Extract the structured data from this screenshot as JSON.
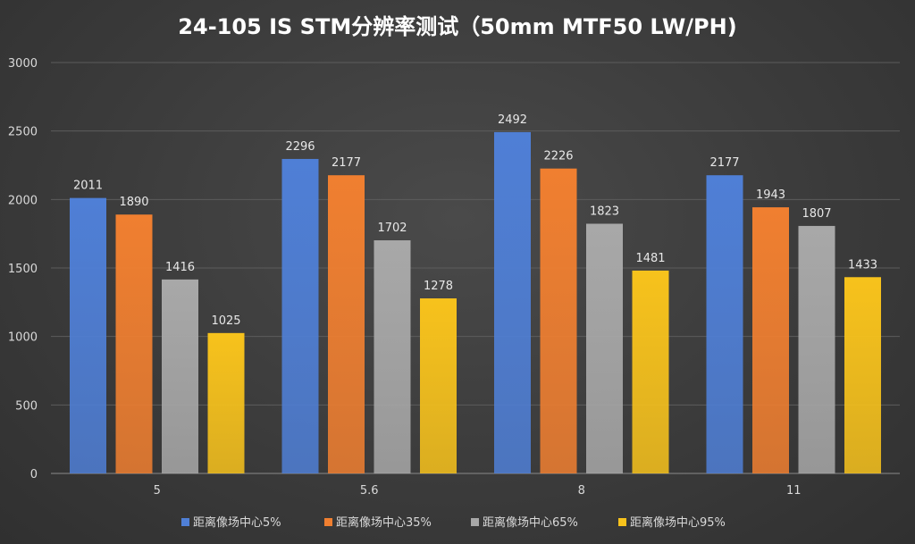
{
  "chart_data": {
    "type": "bar",
    "title": "24-105 IS STM分辨率测试（50mm MTF50 LW/PH)",
    "xlabel": "",
    "ylabel": "",
    "ylim": [
      0,
      3000
    ],
    "yticks": [
      0,
      500,
      1000,
      1500,
      2000,
      2500,
      3000
    ],
    "grid": true,
    "legend_position": "bottom",
    "categories": [
      "5",
      "5.6",
      "8",
      "11"
    ],
    "series": [
      {
        "name": "距离像场中心5%",
        "color": "#4f7fd6",
        "values": [
          2011,
          2296,
          2492,
          2177
        ]
      },
      {
        "name": "距离像场中心35%",
        "color": "#f07f30",
        "values": [
          1890,
          2177,
          2226,
          1943
        ]
      },
      {
        "name": "距离像场中心65%",
        "color": "#a8a8a8",
        "values": [
          1416,
          1702,
          1823,
          1807
        ]
      },
      {
        "name": "距离像场中心95%",
        "color": "#f7c21c",
        "values": [
          1025,
          1278,
          1481,
          1433
        ]
      }
    ]
  }
}
